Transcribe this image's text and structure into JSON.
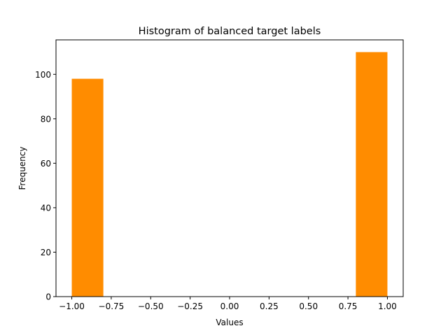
{
  "chart_data": {
    "type": "bar",
    "title": "Histogram of balanced target labels",
    "xlabel": "Values",
    "ylabel": "Frequency",
    "xlim": [
      -1.1,
      1.1
    ],
    "ylim": [
      0,
      115.5
    ],
    "xticks": [
      -1.0,
      -0.75,
      -0.5,
      -0.25,
      0.0,
      0.25,
      0.5,
      0.75,
      1.0
    ],
    "xtick_labels": [
      "−1.00",
      "−0.75",
      "−0.50",
      "−0.25",
      "0.00",
      "0.25",
      "0.50",
      "0.75",
      "1.00"
    ],
    "yticks": [
      0,
      20,
      40,
      60,
      80,
      100
    ],
    "ytick_labels": [
      "0",
      "20",
      "40",
      "60",
      "80",
      "100"
    ],
    "bins": [
      {
        "x0": -1.0,
        "x1": -0.8,
        "value": 98
      },
      {
        "x0": -0.8,
        "x1": -0.6,
        "value": 0
      },
      {
        "x0": -0.6,
        "x1": -0.4,
        "value": 0
      },
      {
        "x0": -0.4,
        "x1": -0.2,
        "value": 0
      },
      {
        "x0": -0.2,
        "x1": 0.0,
        "value": 0
      },
      {
        "x0": 0.0,
        "x1": 0.2,
        "value": 0
      },
      {
        "x0": 0.2,
        "x1": 0.4,
        "value": 0
      },
      {
        "x0": 0.4,
        "x1": 0.6,
        "value": 0
      },
      {
        "x0": 0.6,
        "x1": 0.8,
        "value": 0
      },
      {
        "x0": 0.8,
        "x1": 1.0,
        "value": 110
      }
    ],
    "bar_color": "#ff8c00",
    "grid": false
  }
}
